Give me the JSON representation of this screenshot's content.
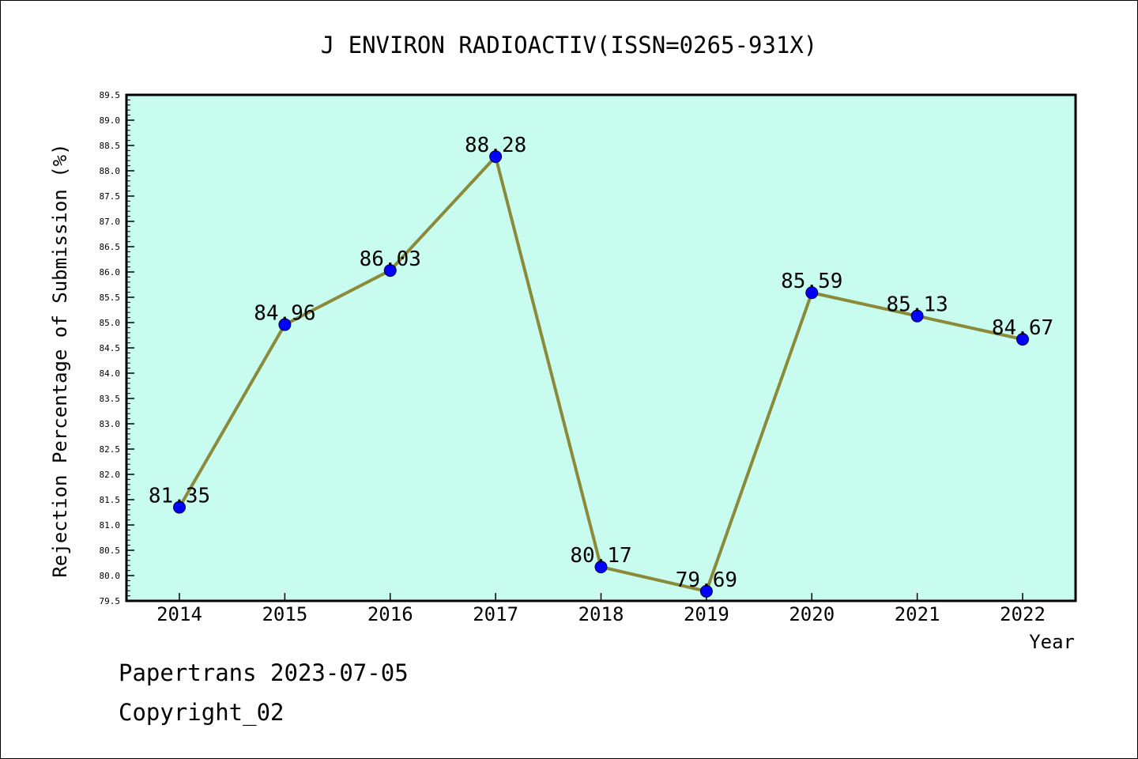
{
  "chart_data": {
    "type": "line",
    "title": "J ENVIRON RADIOACTIV(ISSN=0265-931X)",
    "xlabel": "Year",
    "ylabel": "Rejection Percentage of Submission (%)",
    "categories": [
      "2014",
      "2015",
      "2016",
      "2017",
      "2018",
      "2019",
      "2020",
      "2021",
      "2022"
    ],
    "values": [
      81.35,
      84.96,
      86.03,
      88.28,
      80.17,
      79.69,
      85.59,
      85.13,
      84.67
    ],
    "data_labels": [
      "81.35",
      "84.96",
      "86.03",
      "88.28",
      "80.17",
      "79.69",
      "85.59",
      "85.13",
      "84.67"
    ],
    "ylim": [
      79.5,
      89.5
    ],
    "yticks": [
      "79.5",
      "80.0",
      "80.5",
      "81.0",
      "81.5",
      "82.0",
      "82.5",
      "83.0",
      "83.5",
      "84.0",
      "84.5",
      "85.0",
      "85.5",
      "86.0",
      "86.5",
      "87.0",
      "87.5",
      "88.0",
      "88.5",
      "89.0",
      "89.5"
    ],
    "grid": false,
    "legend": "none",
    "colors": {
      "plot_background": "#c8fcee",
      "line": "#8b8a3a",
      "marker": "#0000ff"
    }
  },
  "footer": {
    "line1": "Papertrans 2023-07-05",
    "line2": "Copyright_02"
  }
}
